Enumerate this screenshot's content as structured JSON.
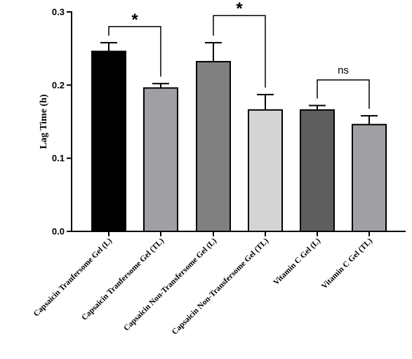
{
  "chart_data": {
    "type": "bar",
    "title": "",
    "xlabel": "",
    "ylabel": "Lag Time (h)",
    "ylim": [
      0,
      0.3
    ],
    "yticks": [
      "0.0",
      "0.1",
      "0.2",
      "0.3"
    ],
    "categories": [
      "Capsaicin Tranfersome Gel (L)",
      "Capsaicin Tranfersome Gel (TL)",
      "Capsaicin Non-Transfersome Gel (L)",
      "Capsaicin Non-Transfersome Gel (TL)",
      "Vitamin C Gel (L)",
      "Vitamin C Gel (TL)"
    ],
    "values": [
      0.246,
      0.196,
      0.232,
      0.166,
      0.166,
      0.146
    ],
    "errors": [
      0.012,
      0.006,
      0.026,
      0.021,
      0.006,
      0.012
    ],
    "colors": [
      "#000000",
      "#a0a0a4",
      "#808080",
      "#d4d4d4",
      "#5e5e5e",
      "#a0a0a4"
    ],
    "grid": false,
    "significance": [
      {
        "from": 0,
        "to": 1,
        "label": "*",
        "bracket_y": 0.28
      },
      {
        "from": 2,
        "to": 3,
        "label": "*",
        "bracket_y": 0.295
      },
      {
        "from": 4,
        "to": 5,
        "label": "ns",
        "bracket_y": 0.207
      }
    ]
  }
}
